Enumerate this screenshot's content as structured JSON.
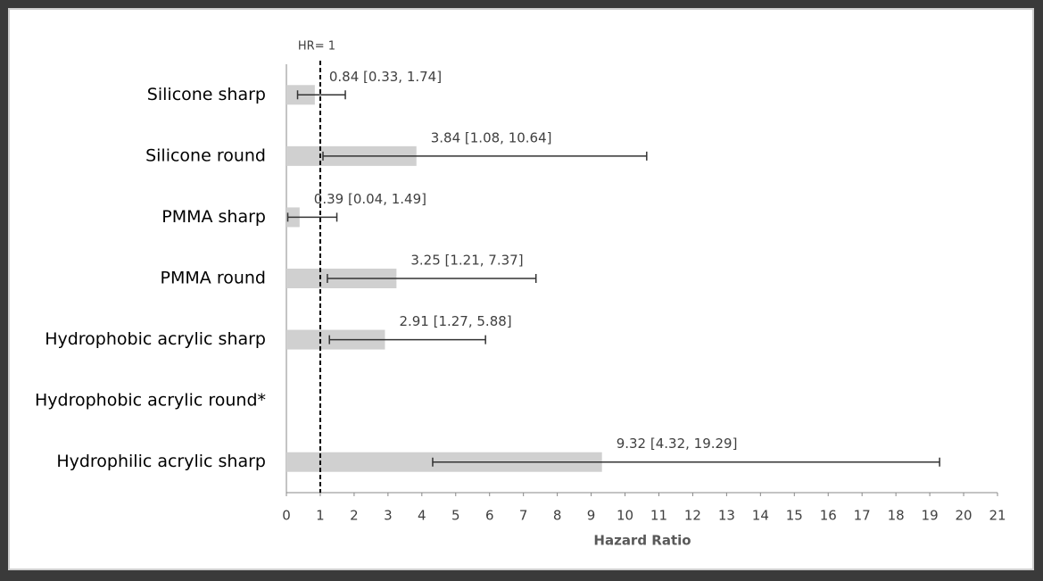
{
  "chart_data": {
    "type": "bar",
    "orientation": "horizontal",
    "x_label": "Hazard Ratio",
    "categories": [
      "Silicone sharp",
      "Silicone round",
      "PMMA sharp",
      "PMMA round",
      "Hydrophobic acrylic sharp",
      "Hydrophobic acrylic round*",
      "Hydrophilic acrylic sharp"
    ],
    "series": [
      {
        "color": "#d0d0d0",
        "error_color": "#333333",
        "values": [
          0.84,
          3.84,
          0.39,
          3.25,
          2.91,
          null,
          9.32
        ],
        "lower": [
          0.33,
          1.08,
          0.04,
          1.21,
          1.27,
          null,
          4.32
        ],
        "upper": [
          1.74,
          10.64,
          1.49,
          7.37,
          5.88,
          null,
          19.29
        ],
        "value_labels": [
          "0.84 [0.33, 1.74]",
          "3.84 [1.08, 10.64]",
          "0.39 [0.04, 1.49]",
          "3.25 [1.21, 7.37]",
          "2.91 [1.27, 5.88]",
          null,
          "9.32 [4.32, 19.29]"
        ]
      }
    ],
    "reference_line": {
      "value": 1,
      "label": "HR= 1"
    },
    "xlim": [
      0,
      21
    ],
    "xticks": [
      0,
      1,
      2,
      3,
      4,
      5,
      6,
      7,
      8,
      9,
      10,
      11,
      12,
      13,
      14,
      15,
      16,
      17,
      18,
      19,
      20,
      21
    ]
  }
}
